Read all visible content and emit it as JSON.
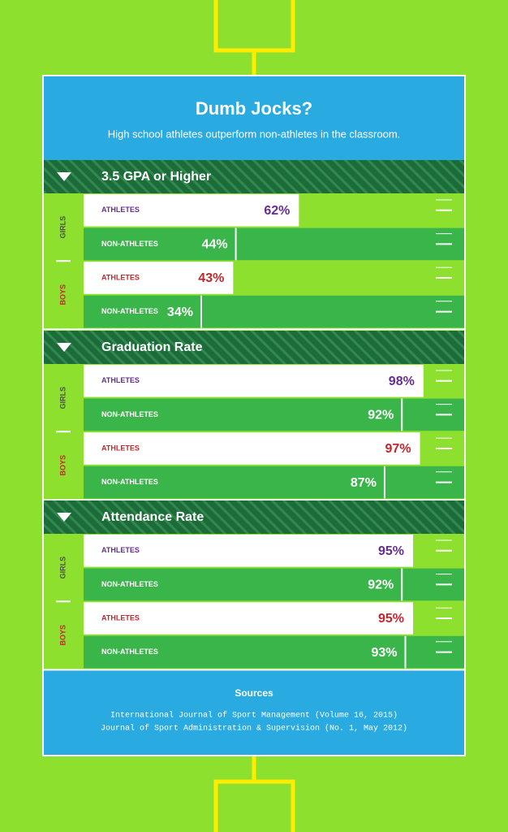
{
  "header": {
    "title": "Dumb Jocks?",
    "subtitle": "High school athletes outperform non-athletes in the classroom."
  },
  "chart_data": [
    {
      "type": "bar",
      "title": "3.5 GPA or Higher",
      "groups": [
        "GIRLS",
        "BOYS"
      ],
      "categories": [
        "ATHLETES",
        "NON-ATHLETES",
        "ATHLETES",
        "NON-ATHLETES"
      ],
      "values": [
        62,
        44,
        43,
        34
      ],
      "value_labels": [
        "62%",
        "44%",
        "43%",
        "34%"
      ],
      "colors": [
        "#ffffff",
        "#39b54a",
        "#ffffff",
        "#39b54a"
      ],
      "group_colors": [
        "#662d91",
        "#c1272d"
      ],
      "xlim": [
        0,
        110
      ]
    },
    {
      "type": "bar",
      "title": "Graduation Rate",
      "groups": [
        "GIRLS",
        "BOYS"
      ],
      "categories": [
        "ATHLETES",
        "NON-ATHLETES",
        "ATHLETES",
        "NON-ATHLETES"
      ],
      "values": [
        98,
        92,
        97,
        87
      ],
      "value_labels": [
        "98%",
        "92%",
        "97%",
        "87%"
      ],
      "colors": [
        "#ffffff",
        "#39b54a",
        "#ffffff",
        "#39b54a"
      ],
      "group_colors": [
        "#662d91",
        "#c1272d"
      ],
      "xlim": [
        0,
        110
      ]
    },
    {
      "type": "bar",
      "title": "Attendance Rate",
      "groups": [
        "GIRLS",
        "BOYS"
      ],
      "categories": [
        "ATHLETES",
        "NON-ATHLETES",
        "ATHLETES",
        "NON-ATHLETES"
      ],
      "values": [
        95,
        92,
        95,
        93
      ],
      "value_labels": [
        "95%",
        "92%",
        "95%",
        "93%"
      ],
      "colors": [
        "#ffffff",
        "#39b54a",
        "#ffffff",
        "#39b54a"
      ],
      "group_colors": [
        "#662d91",
        "#c1272d"
      ],
      "xlim": [
        0,
        110
      ]
    }
  ],
  "sources": {
    "title": "Sources",
    "lines": [
      "International Journal of Sport Management (Volume 16, 2015)",
      "Journal of Sport Administration & Supervision (No. 1, May 2012)"
    ]
  }
}
